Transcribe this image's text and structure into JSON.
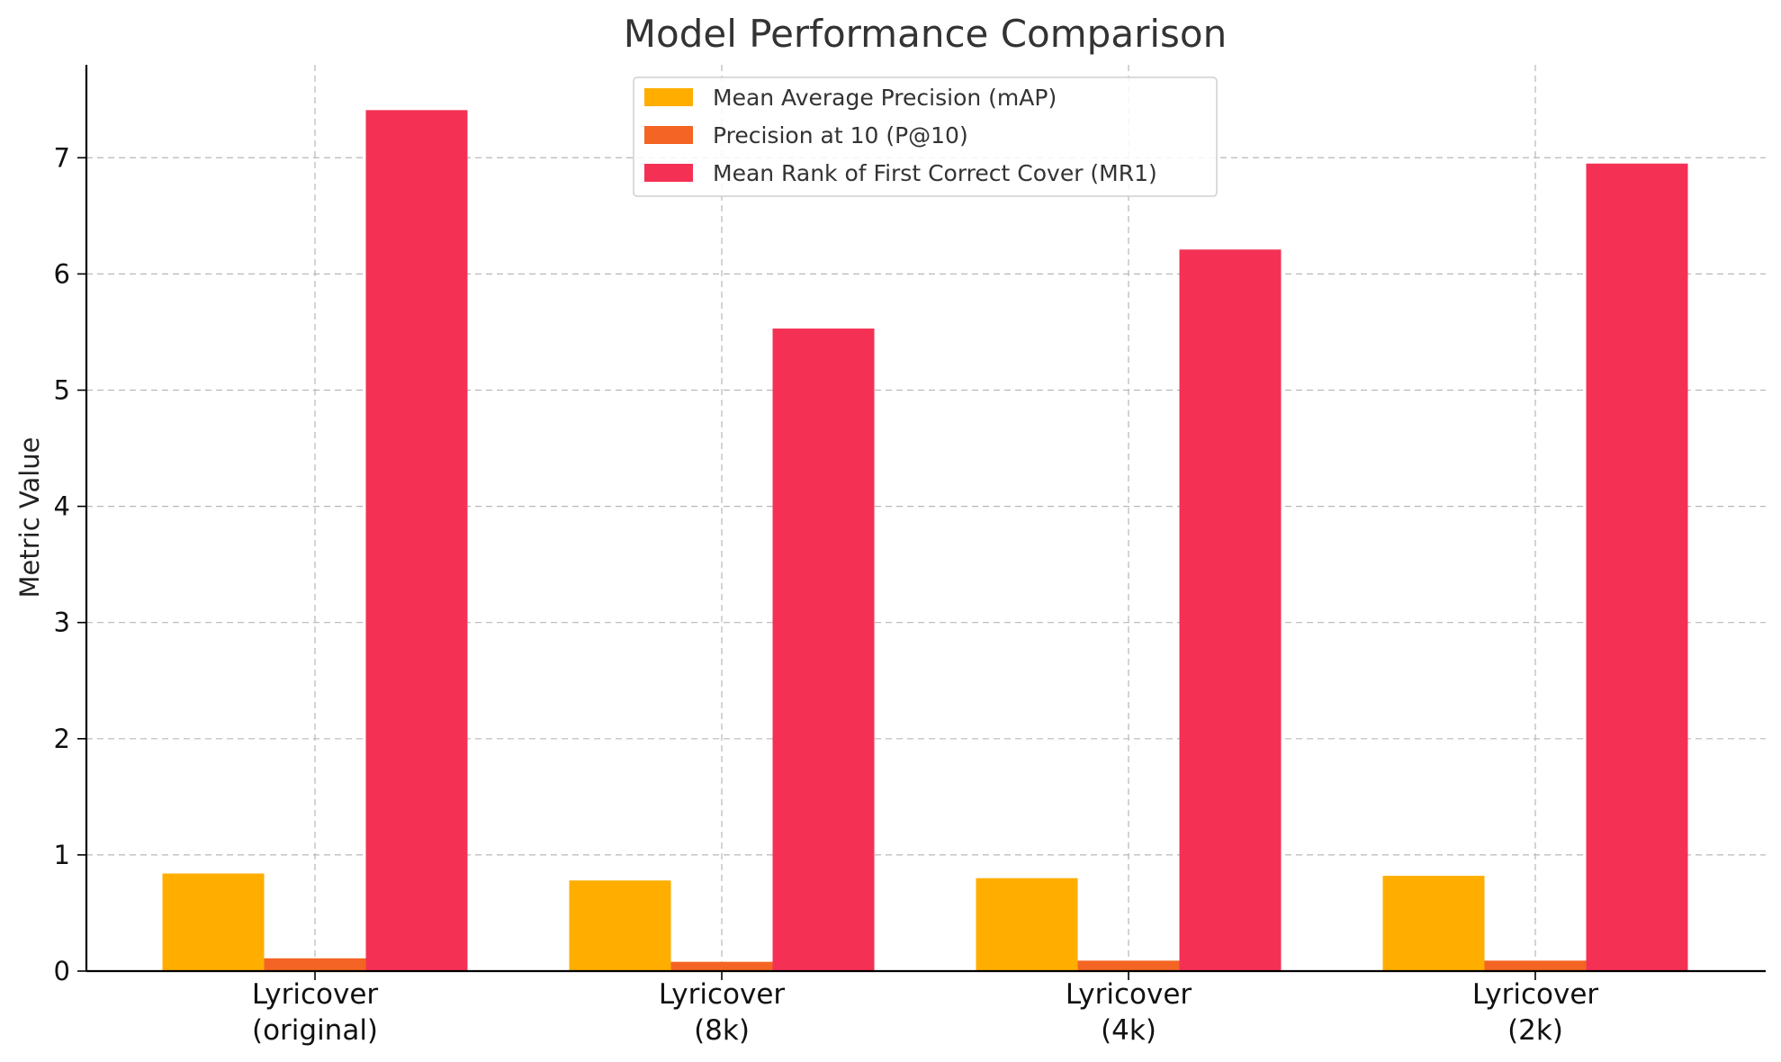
{
  "chart_data": {
    "type": "bar",
    "title": "Model Performance Comparison",
    "xlabel": "",
    "ylabel": "Metric Value",
    "categories": [
      "Lyricover\n(original)",
      "Lyricover\n(8k)",
      "Lyricover\n(4k)",
      "Lyricover\n(2k)"
    ],
    "series": [
      {
        "name": "Mean Average Precision (mAP)",
        "color": "#FFAE00",
        "values": [
          0.84,
          0.78,
          0.8,
          0.82
        ]
      },
      {
        "name": "Precision at 10 (P@10)",
        "color": "#F46424",
        "values": [
          0.11,
          0.08,
          0.09,
          0.09
        ]
      },
      {
        "name": "Mean Rank of First Correct Cover (MR1)",
        "color": "#F43154",
        "values": [
          7.41,
          5.53,
          6.21,
          6.95
        ]
      }
    ],
    "ylim": [
      0,
      7.8
    ],
    "yticks": [
      0,
      1,
      2,
      3,
      4,
      5,
      6,
      7
    ],
    "grid": true,
    "legend": "top-center"
  }
}
